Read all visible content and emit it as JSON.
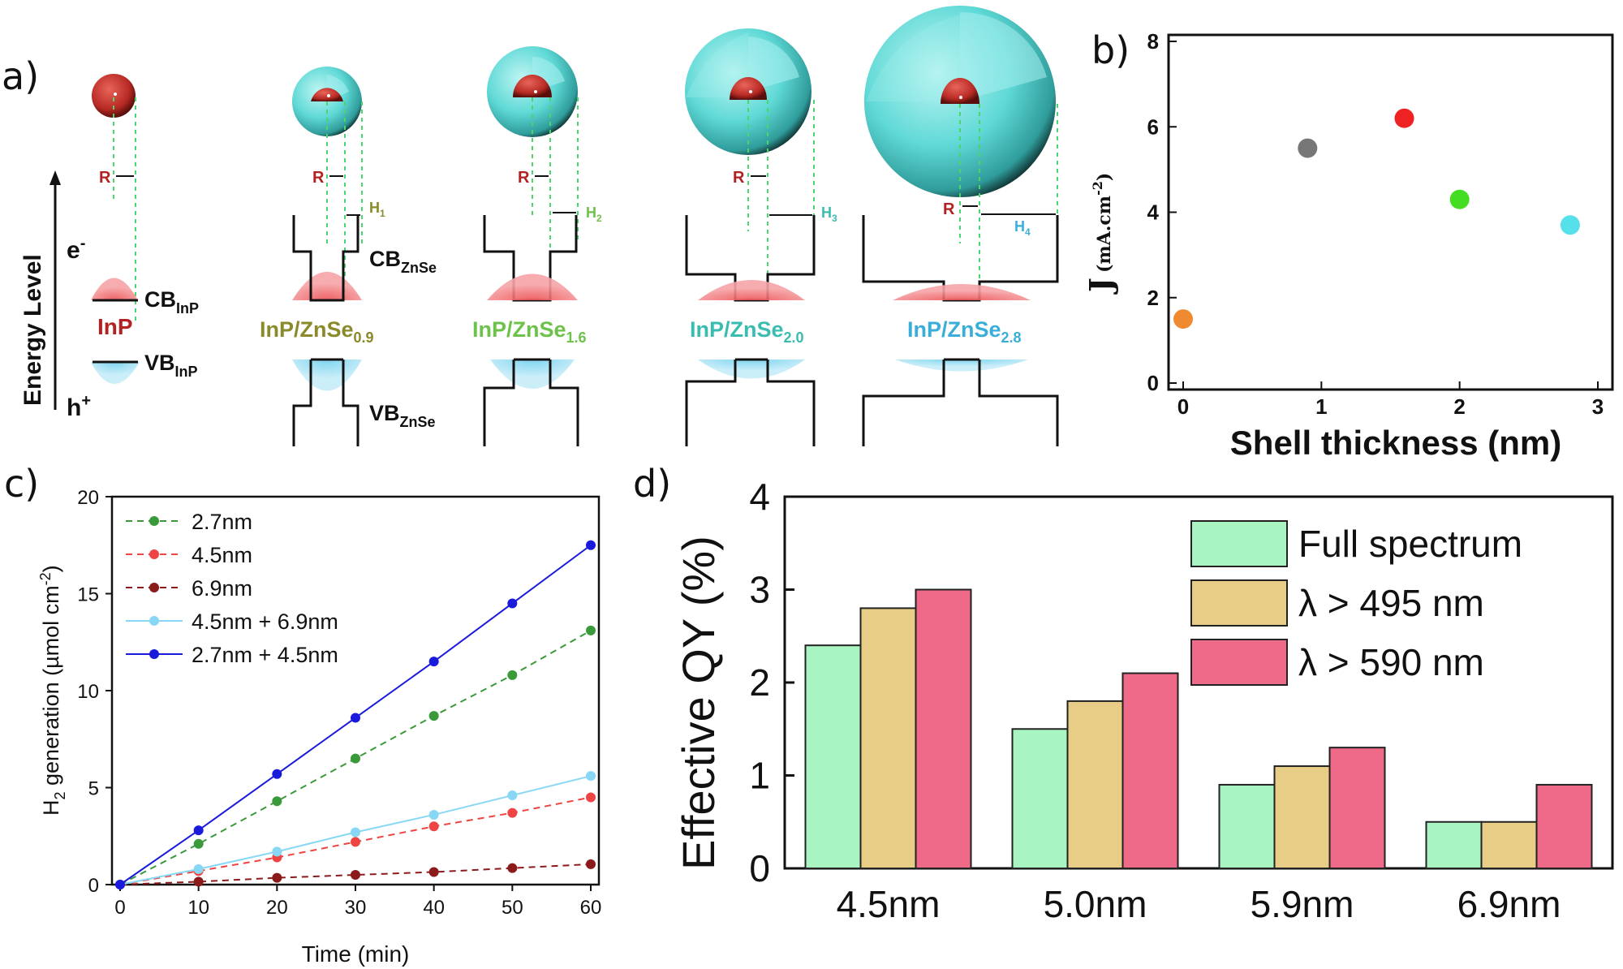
{
  "panel_labels": {
    "a": "a)",
    "b": "b)",
    "c": "c)",
    "d": "d)"
  },
  "colors": {
    "core": "#c9302c",
    "shell": "#5fd9d6",
    "cb_fill": "#f0595b",
    "vb_fill": "#7fd6ef",
    "olive": "#8a8a2a",
    "green": "#6cc24a",
    "teal": "#3bbcb0",
    "cyan": "#3aaed8",
    "dark_red": "#b22222"
  },
  "schematic": {
    "y_label": "Energy Level",
    "electron": "e",
    "electron_sup": "-",
    "hole": "h",
    "hole_sup": "+",
    "cb_inp": "CB",
    "cb_inp_sub": "InP",
    "vb_inp": "VB",
    "vb_inp_sub": "InP",
    "cb_znse": "CB",
    "cb_znse_sub": "ZnSe",
    "vb_znse": "VB",
    "vb_znse_sub": "ZnSe",
    "radius": "R",
    "columns": [
      {
        "name": "InP",
        "sub": "",
        "shell_label": "",
        "shell_sub": ""
      },
      {
        "name": "InP/ZnSe",
        "sub": "0.9",
        "shell_label": "H",
        "shell_sub": "1"
      },
      {
        "name": "InP/ZnSe",
        "sub": "1.6",
        "shell_label": "H",
        "shell_sub": "2"
      },
      {
        "name": "InP/ZnSe",
        "sub": "2.0",
        "shell_label": "H",
        "shell_sub": "3"
      },
      {
        "name": "InP/ZnSe",
        "sub": "2.8",
        "shell_label": "H",
        "shell_sub": "4"
      }
    ]
  },
  "chart_data": [
    {
      "id": "b",
      "type": "scatter",
      "title": "",
      "xlabel": "Shell thickness (nm)",
      "ylabel": "J",
      "ylabel_unit": "(mA.cm",
      "ylabel_unit_sup": "-2",
      "ylabel_unit_close": ")",
      "xlim": [
        0,
        3
      ],
      "ylim": [
        0,
        8
      ],
      "xticks": [
        "0",
        "1",
        "2",
        "3"
      ],
      "yticks": [
        "0",
        "2",
        "4",
        "6",
        "8"
      ],
      "points": [
        {
          "x": 0,
          "y": 1.5,
          "color": "#f08a30"
        },
        {
          "x": 0.9,
          "y": 5.5,
          "color": "#777777"
        },
        {
          "x": 1.6,
          "y": 6.2,
          "color": "#ee2222"
        },
        {
          "x": 2.0,
          "y": 4.3,
          "color": "#44dd22"
        },
        {
          "x": 2.8,
          "y": 3.7,
          "color": "#55e0ea"
        }
      ]
    },
    {
      "id": "c",
      "type": "line",
      "xlabel": "Time (min)",
      "ylabel": "H",
      "ylabel_sub": "2",
      "ylabel_rest": " generation (µmol cm",
      "ylabel_sup": "-2",
      "ylabel_close": ")",
      "xlim": [
        0,
        60
      ],
      "ylim": [
        0,
        20
      ],
      "xticks": [
        "0",
        "10",
        "20",
        "30",
        "40",
        "50",
        "60"
      ],
      "yticks": [
        "0",
        "5",
        "10",
        "15",
        "20"
      ],
      "x": [
        0,
        10,
        20,
        30,
        40,
        50,
        60
      ],
      "series": [
        {
          "name": "2.7nm",
          "values": [
            0,
            2.1,
            4.3,
            6.5,
            8.7,
            10.8,
            13.1
          ],
          "color": "#3a9a3a",
          "dashed": true
        },
        {
          "name": "4.5nm",
          "values": [
            0,
            0.7,
            1.4,
            2.2,
            3.0,
            3.7,
            4.5
          ],
          "color": "#ee4444",
          "dashed": true
        },
        {
          "name": "6.9nm",
          "values": [
            0,
            0.15,
            0.35,
            0.5,
            0.65,
            0.85,
            1.05
          ],
          "color": "#8b1a1a",
          "dashed": true
        },
        {
          "name": "4.5nm + 6.9nm",
          "values": [
            0,
            0.8,
            1.7,
            2.7,
            3.6,
            4.6,
            5.6
          ],
          "color": "#88d8f5",
          "dashed": false
        },
        {
          "name": "2.7nm + 4.5nm",
          "values": [
            0,
            2.8,
            5.7,
            8.6,
            11.5,
            14.5,
            17.5
          ],
          "color": "#1a1add",
          "dashed": false
        }
      ]
    },
    {
      "id": "d",
      "type": "bar",
      "ylabel": "Effective QY (%)",
      "ylim": [
        0,
        4
      ],
      "yticks": [
        "0",
        "1",
        "2",
        "3",
        "4"
      ],
      "categories": [
        "4.5nm",
        "5.0nm",
        "5.9nm",
        "6.9nm"
      ],
      "series": [
        {
          "name": "Full spectrum",
          "values": [
            2.4,
            1.5,
            0.9,
            0.5
          ],
          "color": "#a8f5c2"
        },
        {
          "name": "λ > 495 nm",
          "values": [
            2.8,
            1.8,
            1.1,
            0.5
          ],
          "color": "#e8cd86"
        },
        {
          "name": "λ > 590 nm",
          "values": [
            3.0,
            2.1,
            1.3,
            0.9
          ],
          "color": "#ee6a88"
        }
      ]
    }
  ]
}
